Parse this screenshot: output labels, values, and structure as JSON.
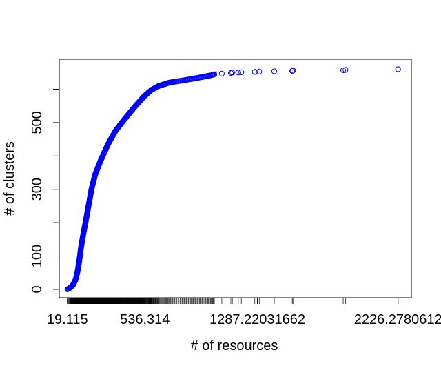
{
  "chart_data": {
    "type": "scatter",
    "xlabel": "# of resources",
    "ylabel": "# of clusters",
    "x_tick_labels": [
      "19.115",
      "536.314",
      "1287.22031662",
      "2226.2780612"
    ],
    "x_tick_values": [
      19.115,
      536.314,
      1287.22031662,
      2226.2780612
    ],
    "y_tick_labels": [
      "0",
      "100",
      "300",
      "500"
    ],
    "y_tick_values": [
      0,
      100,
      300,
      500
    ],
    "y_minor_ticks": [
      200,
      400,
      600
    ],
    "xlim": [
      -35,
      2315
    ],
    "ylim": [
      -25,
      690
    ],
    "marker": "open-circle",
    "color": "#0000ff",
    "curve_points": [
      [
        19.115,
        0
      ],
      [
        35,
        4
      ],
      [
        55,
        12
      ],
      [
        75,
        30
      ],
      [
        90,
        60
      ],
      [
        100,
        90
      ],
      [
        110,
        125
      ],
      [
        125,
        165
      ],
      [
        140,
        200
      ],
      [
        160,
        250
      ],
      [
        180,
        300
      ],
      [
        205,
        345
      ],
      [
        240,
        385
      ],
      [
        290,
        435
      ],
      [
        340,
        475
      ],
      [
        400,
        510
      ],
      [
        470,
        548
      ],
      [
        530,
        578
      ],
      [
        580,
        598
      ],
      [
        630,
        610
      ],
      [
        700,
        620
      ],
      [
        800,
        627
      ],
      [
        900,
        635
      ],
      [
        980,
        642
      ],
      [
        1000,
        645
      ]
    ],
    "tail_points": [
      [
        1050,
        647
      ],
      [
        1110,
        649
      ],
      [
        1120,
        650
      ],
      [
        1160,
        650
      ],
      [
        1180,
        651
      ],
      [
        1270,
        652
      ],
      [
        1300,
        653
      ],
      [
        1400,
        654
      ],
      [
        1520,
        655
      ],
      [
        1525,
        656
      ],
      [
        1860,
        657
      ],
      [
        1875,
        658
      ],
      [
        2226.2780612,
        660
      ]
    ],
    "rug_x": []
  },
  "colors": {
    "points": "#0000ff",
    "axis": "#000000"
  }
}
